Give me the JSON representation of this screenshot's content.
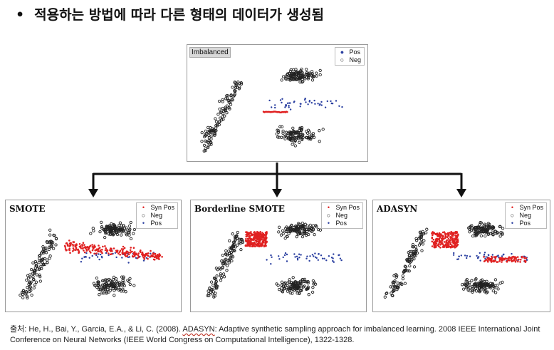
{
  "heading": {
    "bullet": "•",
    "text": "적용하는 방법에 따라 다른 형태의 데이터가 생성됨"
  },
  "colors": {
    "syn": "#e02020",
    "pos": "#2a3fa0",
    "neg": "#222222"
  },
  "chart_data": [
    {
      "type": "scatter",
      "title": "Imbalanced",
      "legend": [
        "Pos",
        "Neg"
      ],
      "legend_placement": "top-right",
      "grid": false,
      "series": [
        {
          "name": "Pos",
          "marker": "dot",
          "color": "#2a3fa0",
          "regions": "sparse dots along the center band between the two Neg clusters"
        },
        {
          "name": "Neg",
          "marker": "circle",
          "color": "#222222",
          "regions": "diagonal cluster on the left, horizontal clusters at top-right and bottom-right"
        }
      ]
    },
    {
      "type": "scatter",
      "title": "SMOTE",
      "legend": [
        "Syn Pos",
        "Neg",
        "Pos"
      ],
      "legend_placement": "top-right",
      "grid": false,
      "series": [
        {
          "name": "Syn Pos",
          "marker": "dot",
          "color": "#e02020",
          "regions": "synthetic points spread along the band connecting Pos samples"
        },
        {
          "name": "Neg",
          "marker": "circle",
          "color": "#222222"
        },
        {
          "name": "Pos",
          "marker": "dot",
          "color": "#2a3fa0"
        }
      ]
    },
    {
      "type": "scatter",
      "title": "Borderline SMOTE",
      "legend": [
        "Syn Pos",
        "Neg",
        "Pos"
      ],
      "legend_placement": "top-right",
      "grid": false,
      "series": [
        {
          "name": "Syn Pos",
          "marker": "dot",
          "color": "#e02020",
          "regions": "dense block at the left end of the Pos band near the border"
        },
        {
          "name": "Neg",
          "marker": "circle",
          "color": "#222222"
        },
        {
          "name": "Pos",
          "marker": "dot",
          "color": "#2a3fa0"
        }
      ]
    },
    {
      "type": "scatter",
      "title": "ADASYN",
      "legend": [
        "Syn Pos",
        "Neg",
        "Pos"
      ],
      "legend_placement": "top-right",
      "grid": false,
      "series": [
        {
          "name": "Syn Pos",
          "marker": "dot",
          "color": "#e02020",
          "regions": "dense block at left of band and a second block at the right end"
        },
        {
          "name": "Neg",
          "marker": "circle",
          "color": "#222222"
        },
        {
          "name": "Pos",
          "marker": "dot",
          "color": "#2a3fa0"
        }
      ]
    }
  ],
  "citation": {
    "prefix": "출처: He, H., Bai, Y., Garcia, E.A., & Li, C. (2008). ",
    "underlined": "ADASYN",
    "line1_rest": ": Adaptive synthetic sampling approach for imbalanced learning. 2008 IEEE International Joint",
    "line2": "Conference on Neural Networks (IEEE World Congress on Computational Intelligence), 1322-1328."
  }
}
